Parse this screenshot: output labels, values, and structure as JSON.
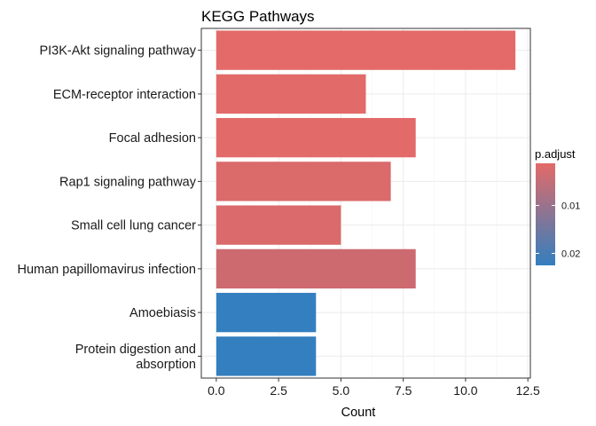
{
  "chart_data": {
    "type": "bar",
    "orientation": "horizontal",
    "title": "KEGG Pathways",
    "xlabel": "Count",
    "ylabel": "",
    "xlim": [
      -0.6,
      12.6
    ],
    "xticks": [
      0.0,
      2.5,
      5.0,
      7.5,
      10.0,
      12.5
    ],
    "xtick_labels": [
      "0.0",
      "2.5",
      "5.0",
      "7.5",
      "10.0",
      "12.5"
    ],
    "categories": [
      "PI3K-Akt signaling pathway",
      "ECM-receptor interaction",
      "Focal adhesion",
      "Rap1 signaling pathway",
      "Small cell lung cancer",
      "Human papillomavirus infection",
      "Amoebiasis",
      "Protein digestion and\nabsorption"
    ],
    "values": [
      12,
      6,
      8,
      7,
      5,
      8,
      4,
      4
    ],
    "p_adjust": [
      0.0012,
      0.0018,
      0.0022,
      0.0038,
      0.0042,
      0.0065,
      0.0225,
      0.0225
    ],
    "bar_colors": [
      "#E36A68",
      "#E26A69",
      "#E26A69",
      "#DB6A6B",
      "#DA6A6B",
      "#CC6A70",
      "#337FBF",
      "#337FBF"
    ],
    "grid": true,
    "legend": {
      "title": "p.adjust",
      "position": "right",
      "ticks": [
        0.01,
        0.02
      ],
      "tick_labels": [
        "0.01",
        "0.02"
      ],
      "range": [
        0.0012,
        0.0225
      ],
      "color_low": "#E36A68",
      "color_high": "#337FBF"
    }
  }
}
